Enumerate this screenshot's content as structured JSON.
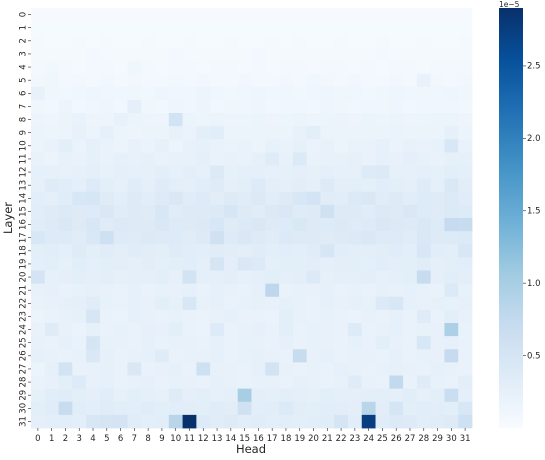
{
  "chart_data": {
    "type": "heatmap",
    "title": "",
    "xlabel": "Head",
    "ylabel": "Layer",
    "x_ticks": [
      "0",
      "1",
      "2",
      "3",
      "4",
      "5",
      "6",
      "7",
      "8",
      "9",
      "10",
      "11",
      "12",
      "13",
      "14",
      "15",
      "16",
      "17",
      "18",
      "19",
      "20",
      "21",
      "22",
      "23",
      "24",
      "25",
      "26",
      "27",
      "28",
      "29",
      "30",
      "31"
    ],
    "y_ticks": [
      "0",
      "1",
      "2",
      "3",
      "4",
      "5",
      "6",
      "7",
      "8",
      "9",
      "10",
      "11",
      "12",
      "13",
      "14",
      "15",
      "16",
      "17",
      "18",
      "19",
      "20",
      "21",
      "22",
      "23",
      "24",
      "25",
      "26",
      "27",
      "28",
      "29",
      "30",
      "31"
    ],
    "colorbar": {
      "offset_label": "1e−5",
      "ticks": [
        "0.5",
        "1.0",
        "1.5",
        "2.0",
        "2.5"
      ],
      "tick_values": [
        0.5,
        1.0,
        1.5,
        2.0,
        2.5
      ],
      "range": [
        0,
        2.9
      ],
      "colormap": "Blues"
    },
    "grid": false,
    "legend": "none",
    "values": [
      [
        0.02,
        0.02,
        0.02,
        0.02,
        0.02,
        0.02,
        0.02,
        0.02,
        0.02,
        0.02,
        0.02,
        0.02,
        0.02,
        0.02,
        0.02,
        0.02,
        0.02,
        0.02,
        0.02,
        0.02,
        0.02,
        0.02,
        0.02,
        0.02,
        0.02,
        0.02,
        0.02,
        0.02,
        0.02,
        0.02,
        0.02,
        0.02
      ],
      [
        0.03,
        0.03,
        0.03,
        0.03,
        0.03,
        0.03,
        0.03,
        0.03,
        0.03,
        0.03,
        0.03,
        0.03,
        0.03,
        0.03,
        0.03,
        0.03,
        0.03,
        0.03,
        0.03,
        0.03,
        0.03,
        0.03,
        0.03,
        0.03,
        0.03,
        0.03,
        0.03,
        0.03,
        0.03,
        0.03,
        0.03,
        0.03
      ],
      [
        0.04,
        0.03,
        0.03,
        0.04,
        0.03,
        0.04,
        0.03,
        0.03,
        0.04,
        0.03,
        0.03,
        0.04,
        0.03,
        0.03,
        0.04,
        0.03,
        0.03,
        0.04,
        0.03,
        0.04,
        0.03,
        0.03,
        0.04,
        0.03,
        0.03,
        0.04,
        0.03,
        0.03,
        0.04,
        0.03,
        0.03,
        0.04
      ],
      [
        0.05,
        0.04,
        0.05,
        0.04,
        0.06,
        0.05,
        0.04,
        0.05,
        0.04,
        0.05,
        0.06,
        0.04,
        0.05,
        0.04,
        0.05,
        0.04,
        0.06,
        0.05,
        0.04,
        0.05,
        0.04,
        0.05,
        0.05,
        0.04,
        0.05,
        0.06,
        0.04,
        0.05,
        0.05,
        0.04,
        0.05,
        0.05
      ],
      [
        0.06,
        0.1,
        0.06,
        0.05,
        0.07,
        0.06,
        0.05,
        0.12,
        0.06,
        0.05,
        0.07,
        0.06,
        0.05,
        0.06,
        0.07,
        0.05,
        0.06,
        0.05,
        0.07,
        0.06,
        0.05,
        0.06,
        0.07,
        0.05,
        0.06,
        0.05,
        0.07,
        0.06,
        0.05,
        0.06,
        0.07,
        0.06
      ],
      [
        0.08,
        0.12,
        0.07,
        0.08,
        0.06,
        0.1,
        0.07,
        0.08,
        0.06,
        0.07,
        0.1,
        0.07,
        0.08,
        0.06,
        0.07,
        0.08,
        0.07,
        0.06,
        0.08,
        0.07,
        0.1,
        0.08,
        0.07,
        0.08,
        0.07,
        0.06,
        0.08,
        0.07,
        0.2,
        0.08,
        0.07,
        0.08
      ],
      [
        0.22,
        0.12,
        0.1,
        0.11,
        0.13,
        0.12,
        0.11,
        0.12,
        0.1,
        0.13,
        0.11,
        0.12,
        0.14,
        0.11,
        0.1,
        0.12,
        0.13,
        0.11,
        0.12,
        0.1,
        0.11,
        0.13,
        0.12,
        0.11,
        0.1,
        0.12,
        0.13,
        0.11,
        0.12,
        0.11,
        0.13,
        0.12
      ],
      [
        0.12,
        0.1,
        0.14,
        0.1,
        0.12,
        0.13,
        0.1,
        0.28,
        0.12,
        0.1,
        0.13,
        0.11,
        0.15,
        0.1,
        0.12,
        0.11,
        0.13,
        0.1,
        0.12,
        0.11,
        0.1,
        0.13,
        0.12,
        0.1,
        0.11,
        0.12,
        0.13,
        0.1,
        0.12,
        0.11,
        0.12,
        0.1
      ],
      [
        0.14,
        0.13,
        0.16,
        0.2,
        0.15,
        0.14,
        0.22,
        0.16,
        0.14,
        0.15,
        0.55,
        0.17,
        0.14,
        0.16,
        0.15,
        0.14,
        0.17,
        0.15,
        0.14,
        0.16,
        0.15,
        0.14,
        0.16,
        0.15,
        0.17,
        0.14,
        0.16,
        0.15,
        0.14,
        0.16,
        0.17,
        0.15
      ],
      [
        0.16,
        0.14,
        0.18,
        0.22,
        0.17,
        0.24,
        0.16,
        0.15,
        0.18,
        0.16,
        0.22,
        0.19,
        0.3,
        0.32,
        0.18,
        0.16,
        0.17,
        0.18,
        0.16,
        0.22,
        0.3,
        0.18,
        0.16,
        0.17,
        0.18,
        0.16,
        0.19,
        0.17,
        0.18,
        0.16,
        0.25,
        0.17
      ],
      [
        0.18,
        0.2,
        0.3,
        0.19,
        0.24,
        0.21,
        0.18,
        0.22,
        0.19,
        0.25,
        0.18,
        0.22,
        0.24,
        0.2,
        0.19,
        0.21,
        0.18,
        0.23,
        0.2,
        0.26,
        0.19,
        0.22,
        0.18,
        0.21,
        0.2,
        0.24,
        0.19,
        0.22,
        0.2,
        0.23,
        0.45,
        0.2
      ],
      [
        0.2,
        0.18,
        0.22,
        0.21,
        0.26,
        0.2,
        0.24,
        0.22,
        0.25,
        0.21,
        0.23,
        0.22,
        0.27,
        0.2,
        0.22,
        0.21,
        0.26,
        0.35,
        0.22,
        0.4,
        0.21,
        0.23,
        0.22,
        0.25,
        0.21,
        0.24,
        0.22,
        0.28,
        0.23,
        0.21,
        0.26,
        0.25
      ],
      [
        0.24,
        0.26,
        0.22,
        0.25,
        0.28,
        0.23,
        0.27,
        0.24,
        0.26,
        0.3,
        0.24,
        0.29,
        0.26,
        0.4,
        0.25,
        0.28,
        0.27,
        0.24,
        0.26,
        0.28,
        0.25,
        0.27,
        0.24,
        0.26,
        0.38,
        0.4,
        0.26,
        0.24,
        0.28,
        0.26,
        0.3,
        0.27
      ],
      [
        0.26,
        0.35,
        0.32,
        0.28,
        0.38,
        0.3,
        0.26,
        0.34,
        0.28,
        0.35,
        0.3,
        0.27,
        0.32,
        0.35,
        0.28,
        0.3,
        0.38,
        0.29,
        0.27,
        0.31,
        0.28,
        0.36,
        0.29,
        0.3,
        0.28,
        0.32,
        0.3,
        0.28,
        0.35,
        0.27,
        0.42,
        0.31
      ],
      [
        0.3,
        0.28,
        0.34,
        0.45,
        0.48,
        0.35,
        0.3,
        0.38,
        0.32,
        0.36,
        0.42,
        0.33,
        0.38,
        0.31,
        0.36,
        0.34,
        0.4,
        0.32,
        0.37,
        0.45,
        0.52,
        0.34,
        0.32,
        0.4,
        0.42,
        0.33,
        0.36,
        0.32,
        0.38,
        0.35,
        0.4,
        0.34
      ],
      [
        0.32,
        0.35,
        0.4,
        0.36,
        0.38,
        0.42,
        0.34,
        0.37,
        0.35,
        0.45,
        0.33,
        0.38,
        0.36,
        0.4,
        0.48,
        0.36,
        0.34,
        0.39,
        0.42,
        0.35,
        0.37,
        0.58,
        0.36,
        0.38,
        0.34,
        0.4,
        0.36,
        0.42,
        0.38,
        0.35,
        0.4,
        0.38
      ],
      [
        0.34,
        0.38,
        0.42,
        0.36,
        0.45,
        0.35,
        0.4,
        0.38,
        0.36,
        0.42,
        0.38,
        0.36,
        0.4,
        0.45,
        0.35,
        0.4,
        0.42,
        0.36,
        0.38,
        0.44,
        0.36,
        0.38,
        0.4,
        0.35,
        0.38,
        0.42,
        0.4,
        0.36,
        0.42,
        0.38,
        0.72,
        0.7
      ],
      [
        0.45,
        0.36,
        0.38,
        0.34,
        0.42,
        0.6,
        0.36,
        0.35,
        0.4,
        0.36,
        0.38,
        0.34,
        0.36,
        0.58,
        0.38,
        0.42,
        0.36,
        0.34,
        0.4,
        0.36,
        0.38,
        0.35,
        0.36,
        0.4,
        0.42,
        0.36,
        0.38,
        0.34,
        0.42,
        0.36,
        0.38,
        0.4
      ],
      [
        0.3,
        0.32,
        0.28,
        0.35,
        0.3,
        0.34,
        0.29,
        0.33,
        0.31,
        0.3,
        0.35,
        0.32,
        0.3,
        0.34,
        0.31,
        0.29,
        0.33,
        0.3,
        0.32,
        0.3,
        0.34,
        0.48,
        0.32,
        0.3,
        0.29,
        0.31,
        0.33,
        0.3,
        0.45,
        0.32,
        0.3,
        0.45
      ],
      [
        0.28,
        0.3,
        0.26,
        0.32,
        0.28,
        0.3,
        0.29,
        0.27,
        0.31,
        0.28,
        0.3,
        0.32,
        0.28,
        0.5,
        0.29,
        0.42,
        0.4,
        0.28,
        0.3,
        0.29,
        0.31,
        0.27,
        0.29,
        0.3,
        0.28,
        0.32,
        0.29,
        0.3,
        0.34,
        0.28,
        0.3,
        0.32
      ],
      [
        0.52,
        0.26,
        0.28,
        0.3,
        0.27,
        0.29,
        0.26,
        0.28,
        0.27,
        0.3,
        0.26,
        0.55,
        0.28,
        0.27,
        0.29,
        0.26,
        0.28,
        0.3,
        0.27,
        0.29,
        0.4,
        0.26,
        0.28,
        0.27,
        0.29,
        0.26,
        0.28,
        0.3,
        0.7,
        0.27,
        0.32,
        0.29
      ],
      [
        0.22,
        0.24,
        0.2,
        0.23,
        0.25,
        0.22,
        0.21,
        0.24,
        0.2,
        0.23,
        0.22,
        0.24,
        0.21,
        0.25,
        0.22,
        0.2,
        0.24,
        0.8,
        0.21,
        0.23,
        0.22,
        0.24,
        0.2,
        0.23,
        0.21,
        0.25,
        0.22,
        0.24,
        0.23,
        0.21,
        0.4,
        0.23
      ],
      [
        0.2,
        0.22,
        0.26,
        0.28,
        0.34,
        0.23,
        0.21,
        0.24,
        0.22,
        0.3,
        0.25,
        0.45,
        0.22,
        0.24,
        0.21,
        0.23,
        0.25,
        0.22,
        0.26,
        0.23,
        0.21,
        0.24,
        0.22,
        0.25,
        0.23,
        0.4,
        0.45,
        0.24,
        0.22,
        0.26,
        0.23,
        0.25
      ],
      [
        0.18,
        0.2,
        0.22,
        0.25,
        0.48,
        0.21,
        0.19,
        0.24,
        0.22,
        0.2,
        0.23,
        0.21,
        0.19,
        0.22,
        0.24,
        0.2,
        0.21,
        0.19,
        0.3,
        0.22,
        0.2,
        0.23,
        0.21,
        0.19,
        0.22,
        0.2,
        0.24,
        0.21,
        0.35,
        0.2,
        0.3,
        0.22
      ],
      [
        0.2,
        0.35,
        0.22,
        0.19,
        0.25,
        0.21,
        0.23,
        0.2,
        0.24,
        0.22,
        0.3,
        0.21,
        0.19,
        0.38,
        0.2,
        0.22,
        0.24,
        0.21,
        0.3,
        0.2,
        0.23,
        0.22,
        0.21,
        0.38,
        0.2,
        0.22,
        0.24,
        0.21,
        0.23,
        0.22,
        0.95,
        0.2
      ],
      [
        0.22,
        0.2,
        0.24,
        0.21,
        0.5,
        0.23,
        0.22,
        0.2,
        0.24,
        0.21,
        0.23,
        0.22,
        0.2,
        0.24,
        0.21,
        0.23,
        0.22,
        0.2,
        0.24,
        0.21,
        0.23,
        0.22,
        0.2,
        0.24,
        0.21,
        0.3,
        0.22,
        0.2,
        0.45,
        0.22,
        0.24,
        0.21
      ],
      [
        0.24,
        0.22,
        0.2,
        0.23,
        0.42,
        0.24,
        0.21,
        0.22,
        0.24,
        0.35,
        0.2,
        0.23,
        0.22,
        0.24,
        0.21,
        0.23,
        0.25,
        0.22,
        0.21,
        0.7,
        0.22,
        0.24,
        0.21,
        0.23,
        0.22,
        0.2,
        0.24,
        0.21,
        0.23,
        0.22,
        0.72,
        0.21
      ],
      [
        0.18,
        0.24,
        0.55,
        0.2,
        0.22,
        0.25,
        0.21,
        0.42,
        0.2,
        0.22,
        0.24,
        0.21,
        0.6,
        0.23,
        0.22,
        0.21,
        0.24,
        0.55,
        0.22,
        0.21,
        0.23,
        0.2,
        0.24,
        0.22,
        0.21,
        0.23,
        0.25,
        0.22,
        0.21,
        0.24,
        0.22,
        0.2
      ],
      [
        0.2,
        0.22,
        0.3,
        0.38,
        0.22,
        0.24,
        0.2,
        0.22,
        0.24,
        0.21,
        0.23,
        0.22,
        0.2,
        0.24,
        0.22,
        0.21,
        0.23,
        0.22,
        0.2,
        0.24,
        0.22,
        0.21,
        0.23,
        0.35,
        0.22,
        0.2,
        0.75,
        0.21,
        0.35,
        0.23,
        0.2,
        0.3
      ],
      [
        0.26,
        0.32,
        0.34,
        0.3,
        0.28,
        0.32,
        0.26,
        0.3,
        0.28,
        0.26,
        0.35,
        0.28,
        0.3,
        0.26,
        0.28,
        1.0,
        0.29,
        0.27,
        0.3,
        0.28,
        0.26,
        0.3,
        0.28,
        0.27,
        0.29,
        0.3,
        0.28,
        0.32,
        0.26,
        0.3,
        0.65,
        0.28
      ],
      [
        0.3,
        0.34,
        0.7,
        0.32,
        0.3,
        0.34,
        0.31,
        0.29,
        0.33,
        0.3,
        0.32,
        0.31,
        0.3,
        0.33,
        0.31,
        0.58,
        0.29,
        0.32,
        0.4,
        0.31,
        0.3,
        0.32,
        0.31,
        0.29,
        0.85,
        0.31,
        0.5,
        0.3,
        0.32,
        0.31,
        0.3,
        0.45
      ],
      [
        0.28,
        0.3,
        0.32,
        0.29,
        0.45,
        0.5,
        0.52,
        0.34,
        0.3,
        0.32,
        0.85,
        2.95,
        0.38,
        0.34,
        0.36,
        0.32,
        0.34,
        0.3,
        0.32,
        0.3,
        0.32,
        0.34,
        0.5,
        0.32,
        2.75,
        0.34,
        0.4,
        0.36,
        0.32,
        0.34,
        0.36,
        0.6
      ]
    ]
  }
}
